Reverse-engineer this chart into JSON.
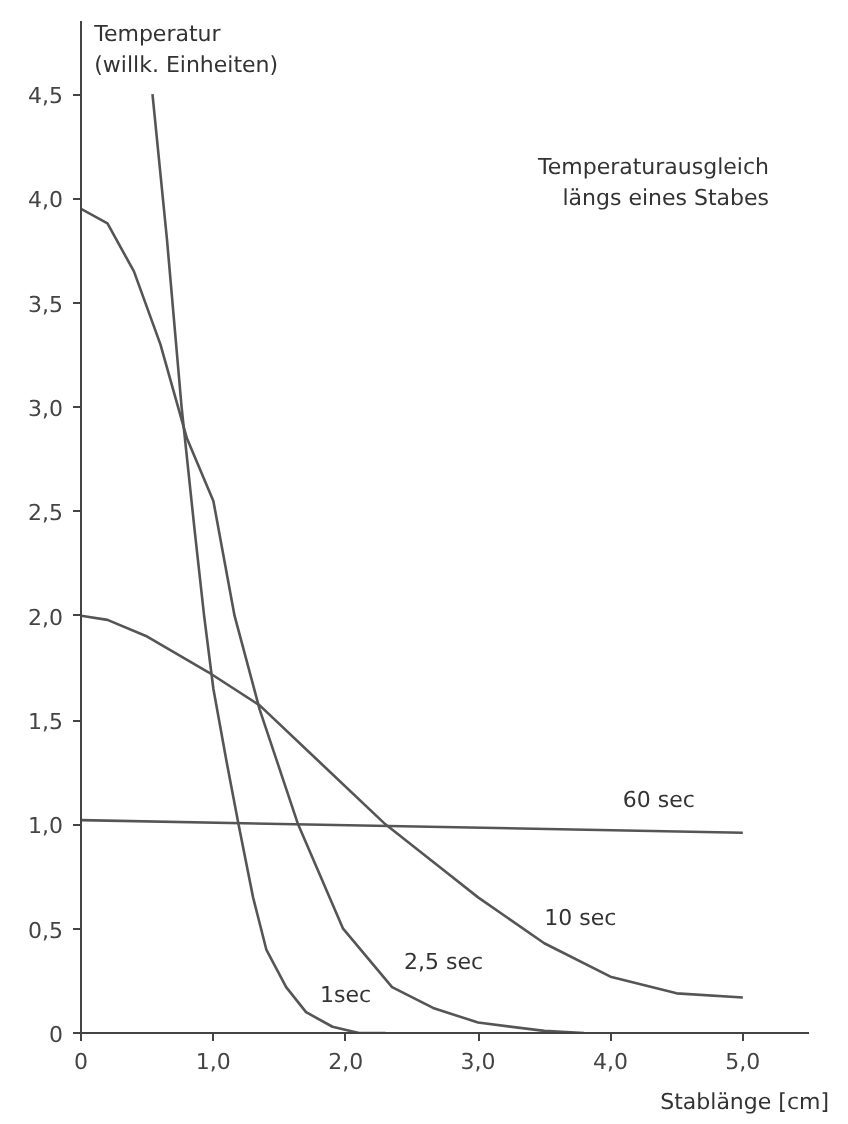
{
  "chart_data": {
    "type": "line",
    "ylabel": "Temperatur\n(willk. Einheiten)",
    "xlabel": "Stablänge [cm]",
    "annotations": [
      "Temperaturausgleich\nlängs eines Stabes"
    ],
    "xlim": [
      0,
      5.5
    ],
    "ylim": [
      0,
      4.85
    ],
    "xticks": [
      0,
      {
        "value": 1,
        "label": "1,0"
      },
      {
        "value": 2,
        "label": "2,0"
      },
      {
        "value": 3,
        "label": "3,0"
      },
      {
        "value": 4,
        "label": "4,0"
      },
      {
        "value": 5,
        "label": "5,0"
      }
    ],
    "yticks": [
      0,
      {
        "value": 0.5,
        "label": "0,5"
      },
      {
        "value": 1,
        "label": "1,0"
      },
      {
        "value": 1.5,
        "label": "1,5"
      },
      {
        "value": 2,
        "label": "2,0"
      },
      {
        "value": 2.5,
        "label": "2,5"
      },
      {
        "value": 3,
        "label": "3,0"
      },
      {
        "value": 3.5,
        "label": "3,5"
      },
      {
        "value": 4,
        "label": "4,0"
      },
      {
        "value": 4.5,
        "label": "4,5"
      }
    ],
    "grid": false,
    "marker": "none",
    "line_style": "solid",
    "series": [
      {
        "name": "1sec",
        "color": "#555555",
        "x": [
          0.54,
          0.65,
          0.76,
          0.86,
          0.93,
          1.0,
          1.1,
          1.19,
          1.3,
          1.4,
          1.55,
          1.7,
          1.9,
          2.1,
          2.3
        ],
        "values": [
          4.5,
          3.8,
          3.0,
          2.4,
          2.0,
          1.65,
          1.3,
          1.0,
          0.65,
          0.4,
          0.22,
          0.1,
          0.03,
          0.0,
          0.0
        ]
      },
      {
        "name": "2,5 sec",
        "color": "#555555",
        "x": [
          0,
          0.2,
          0.4,
          0.6,
          0.8,
          1.0,
          1.16,
          1.35,
          1.64,
          1.98,
          2.35,
          2.66,
          3.0,
          3.5,
          3.8
        ],
        "values": [
          3.95,
          3.88,
          3.65,
          3.3,
          2.85,
          2.55,
          2.0,
          1.55,
          1.0,
          0.5,
          0.22,
          0.12,
          0.05,
          0.01,
          0.0
        ]
      },
      {
        "name": "10 sec",
        "color": "#555555",
        "x": [
          0,
          0.2,
          0.5,
          0.96,
          1.35,
          1.8,
          2.3,
          2.7,
          3.0,
          3.5,
          4.0,
          4.5,
          5.0
        ],
        "values": [
          2.0,
          1.98,
          1.9,
          1.73,
          1.57,
          1.3,
          1.0,
          0.8,
          0.65,
          0.43,
          0.27,
          0.19,
          0.17
        ]
      },
      {
        "name": "60 sec",
        "color": "#555555",
        "x": [
          0,
          5.0
        ],
        "values": [
          1.02,
          0.96
        ]
      }
    ]
  }
}
